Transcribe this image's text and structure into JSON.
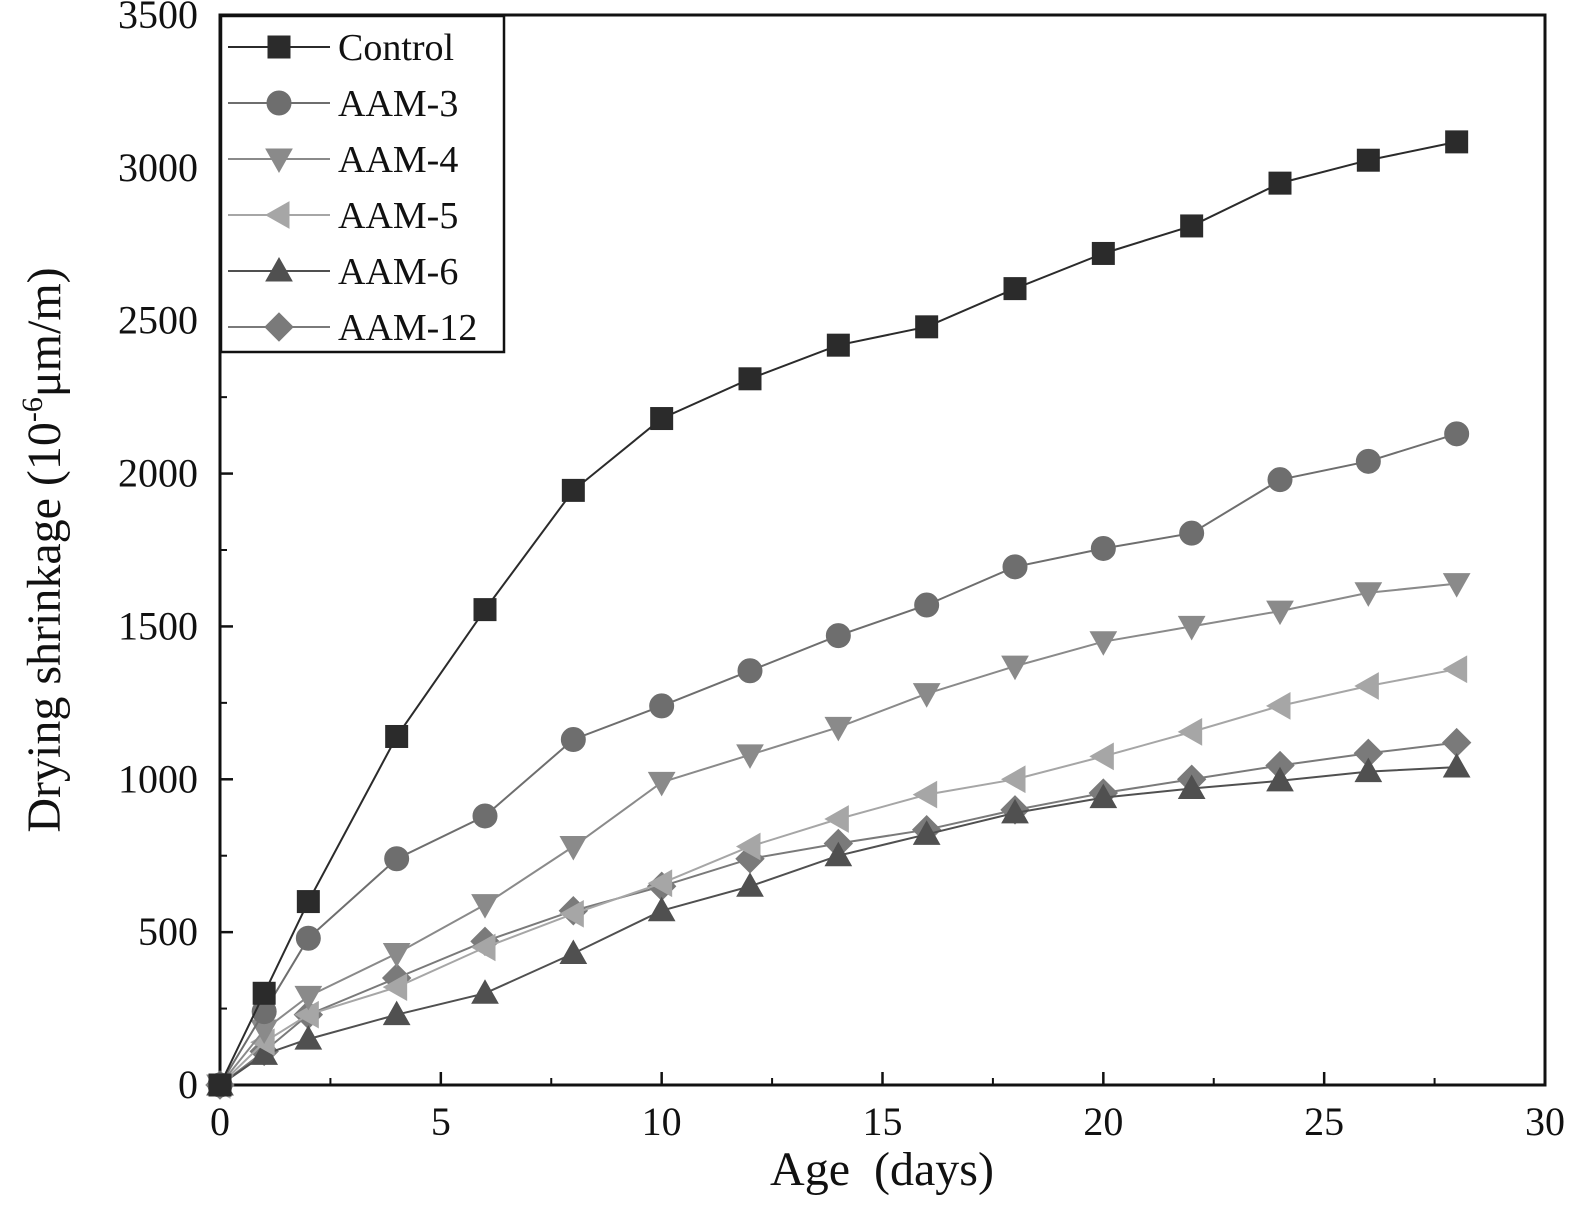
{
  "chart_data": {
    "type": "line",
    "title": "",
    "xlabel": "Age  (days)",
    "ylabel_main": "Drying shrinkage (10",
    "ylabel_sup": "-6",
    "ylabel_tail": "μm/m)",
    "xlim": [
      0,
      30
    ],
    "ylim": [
      0,
      3500
    ],
    "xticks": [
      0,
      5,
      10,
      15,
      20,
      25,
      30
    ],
    "yticks": [
      0,
      500,
      1000,
      1500,
      2000,
      2500,
      3000,
      3500
    ],
    "legend_position": "top-left",
    "grid": false,
    "x": [
      0,
      1,
      2,
      4,
      6,
      8,
      10,
      12,
      14,
      16,
      18,
      20,
      22,
      24,
      26,
      28
    ],
    "series": [
      {
        "name": "Control",
        "marker": "square",
        "color": "#2b2b2b",
        "values": [
          0,
          300,
          600,
          1140,
          1555,
          1945,
          2180,
          2310,
          2420,
          2480,
          2605,
          2720,
          2810,
          2950,
          3025,
          3085
        ]
      },
      {
        "name": "AAM-3",
        "marker": "circle",
        "color": "#6e6e6e",
        "values": [
          0,
          240,
          480,
          740,
          880,
          1130,
          1240,
          1355,
          1470,
          1570,
          1695,
          1755,
          1805,
          1980,
          2040,
          2130
        ]
      },
      {
        "name": "AAM-4",
        "marker": "triangle-down",
        "color": "#8a8a8a",
        "values": [
          0,
          180,
          290,
          430,
          590,
          780,
          990,
          1080,
          1170,
          1280,
          1370,
          1450,
          1500,
          1550,
          1610,
          1640
        ]
      },
      {
        "name": "AAM-5",
        "marker": "triangle-left",
        "color": "#a6a6a6",
        "values": [
          0,
          140,
          230,
          320,
          450,
          560,
          660,
          780,
          870,
          950,
          1000,
          1075,
          1155,
          1240,
          1305,
          1360
        ]
      },
      {
        "name": "AAM-6",
        "marker": "triangle-up",
        "color": "#505050",
        "values": [
          0,
          100,
          150,
          230,
          300,
          430,
          570,
          650,
          750,
          820,
          890,
          940,
          970,
          995,
          1025,
          1040
        ]
      },
      {
        "name": "AAM-12",
        "marker": "diamond",
        "color": "#7a7a7a",
        "values": [
          0,
          110,
          230,
          350,
          470,
          570,
          650,
          740,
          790,
          835,
          900,
          955,
          1000,
          1045,
          1085,
          1120
        ]
      }
    ]
  }
}
